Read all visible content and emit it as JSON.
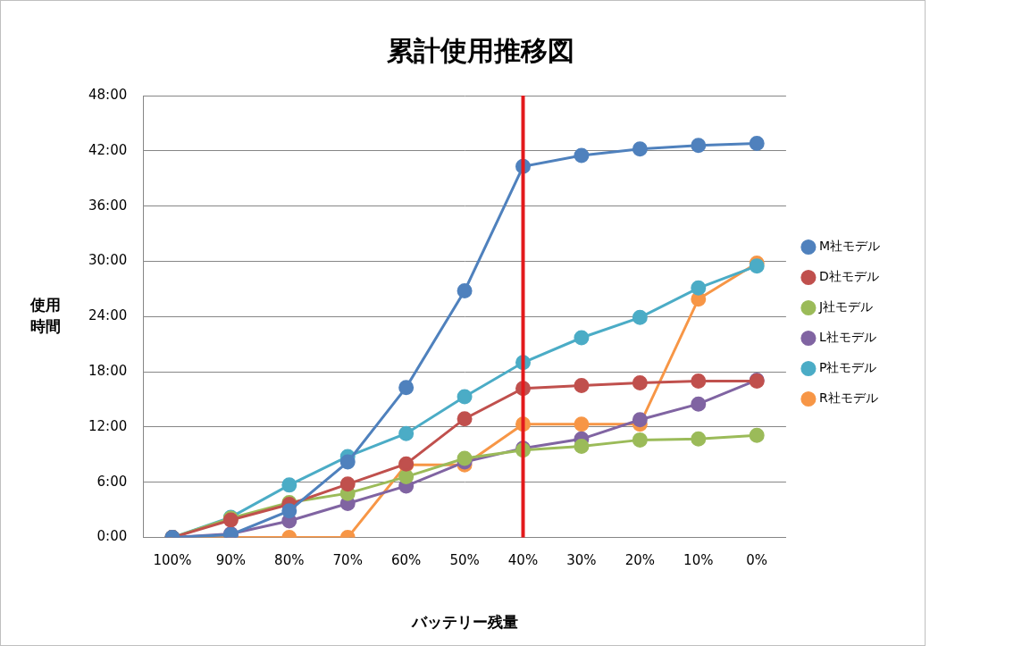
{
  "chart_data": {
    "type": "line",
    "title": "累計使用推移図",
    "xlabel": "バッテリー残量",
    "ylabel": "使用\n時間",
    "categories": [
      "100%",
      "90%",
      "80%",
      "70%",
      "60%",
      "50%",
      "40%",
      "30%",
      "20%",
      "10%",
      "0%"
    ],
    "series": [
      {
        "name": "M社モデル",
        "color": "#4f81bd",
        "marker": "circle",
        "values": [
          0,
          0.3,
          2.9,
          8.2,
          16.3,
          26.8,
          40.3,
          41.5,
          42.2,
          42.6,
          42.8
        ]
      },
      {
        "name": "D社モデル",
        "color": "#c0504d",
        "marker": "circle",
        "values": [
          0,
          1.9,
          3.6,
          5.8,
          8.0,
          12.9,
          16.2,
          16.5,
          16.8,
          17.0,
          17.0
        ]
      },
      {
        "name": "J社モデル",
        "color": "#9bbb59",
        "marker": "circle",
        "values": [
          0,
          2.1,
          3.8,
          4.8,
          6.6,
          8.6,
          9.5,
          9.9,
          10.6,
          10.7,
          11.1
        ]
      },
      {
        "name": "L社モデル",
        "color": "#8064a2",
        "marker": "circle",
        "values": [
          0,
          0.4,
          1.8,
          3.7,
          5.6,
          8.2,
          9.7,
          10.7,
          12.8,
          14.5,
          17.1
        ]
      },
      {
        "name": "P社モデル",
        "color": "#4bacc6",
        "marker": "circle",
        "values": [
          0,
          2.2,
          5.7,
          8.8,
          11.3,
          15.3,
          19.0,
          21.7,
          23.9,
          27.1,
          29.5
        ]
      },
      {
        "name": "R社モデル",
        "color": "#f79646",
        "marker": "circle",
        "values": [
          0,
          0,
          0,
          0,
          7.9,
          7.9,
          12.3,
          12.3,
          12.3,
          25.9,
          29.8
        ]
      }
    ],
    "ylim": [
      0,
      48
    ],
    "yticks": [
      {
        "value": 0,
        "label": "0:00"
      },
      {
        "value": 6,
        "label": "6:00"
      },
      {
        "value": 12,
        "label": "12:00"
      },
      {
        "value": 18,
        "label": "18:00"
      },
      {
        "value": 24,
        "label": "24:00"
      },
      {
        "value": 30,
        "label": "30:00"
      },
      {
        "value": 36,
        "label": "36:00"
      },
      {
        "value": 42,
        "label": "42:00"
      },
      {
        "value": 48,
        "label": "48:00"
      }
    ],
    "grid": true,
    "legend": "right",
    "annotations": [
      {
        "type": "vline",
        "x": "40%",
        "color": "#e31a1c"
      }
    ]
  }
}
